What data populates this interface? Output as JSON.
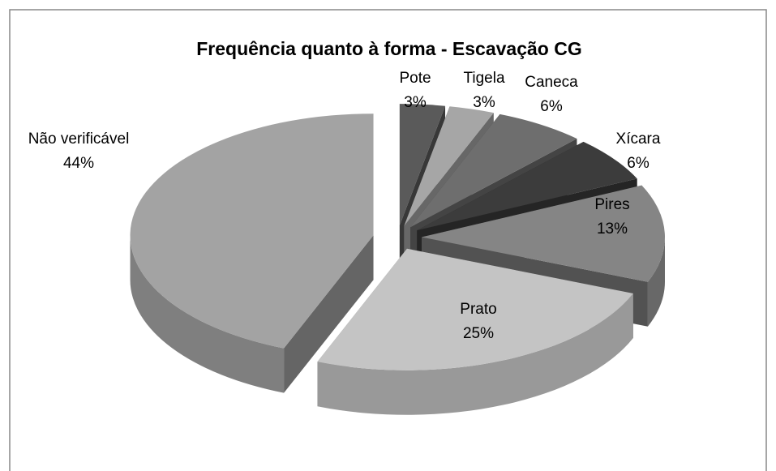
{
  "chart_data": {
    "type": "pie3d",
    "title": "Frequência quanto à forma - Escavação CG",
    "categories": [
      "Pote",
      "Tigela",
      "Caneca",
      "Xícara",
      "Pires",
      "Prato",
      "Não verificável"
    ],
    "values": [
      3,
      3,
      6,
      6,
      13,
      25,
      44
    ],
    "value_labels": [
      "3%",
      "3%",
      "6%",
      "6%",
      "13%",
      "25%",
      "44%"
    ],
    "colors": [
      "#5a5a5a",
      "#a6a6a6",
      "#6e6e6e",
      "#3c3c3c",
      "#858585",
      "#c4c4c4",
      "#a3a3a3"
    ]
  }
}
